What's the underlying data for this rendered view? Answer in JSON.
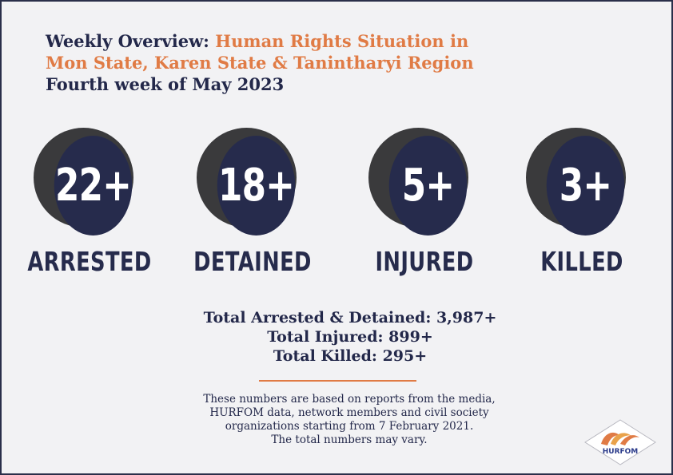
{
  "title": {
    "prefix": "Weekly Overview:",
    "accent_line1": "Human Rights Situation in",
    "accent_line2": "Mon State, Karen State & Tanintharyi Region",
    "subtitle": "Fourth week of May 2023"
  },
  "stats": [
    {
      "value": "22+",
      "label": "ARRESTED"
    },
    {
      "value": "18+",
      "label": "DETAINED"
    },
    {
      "value": "5+",
      "label": "INJURED"
    },
    {
      "value": "3+",
      "label": "KILLED"
    }
  ],
  "totals": [
    "Total Arrested & Detained: 3,987+",
    "Total Injured: 899+",
    "Total Killed: 295+"
  ],
  "note": [
    "These numbers are based on reports from the media,",
    "HURFOM data, network members and civil society",
    "organizations starting from 7 February 2021.",
    "The total numbers may vary."
  ],
  "logo": {
    "text": "HURFOM",
    "icon": "hurfom-logo-icon"
  },
  "colors": {
    "navy": "#262b4c",
    "accent": "#e07b45",
    "background": "#f2f2f4"
  }
}
